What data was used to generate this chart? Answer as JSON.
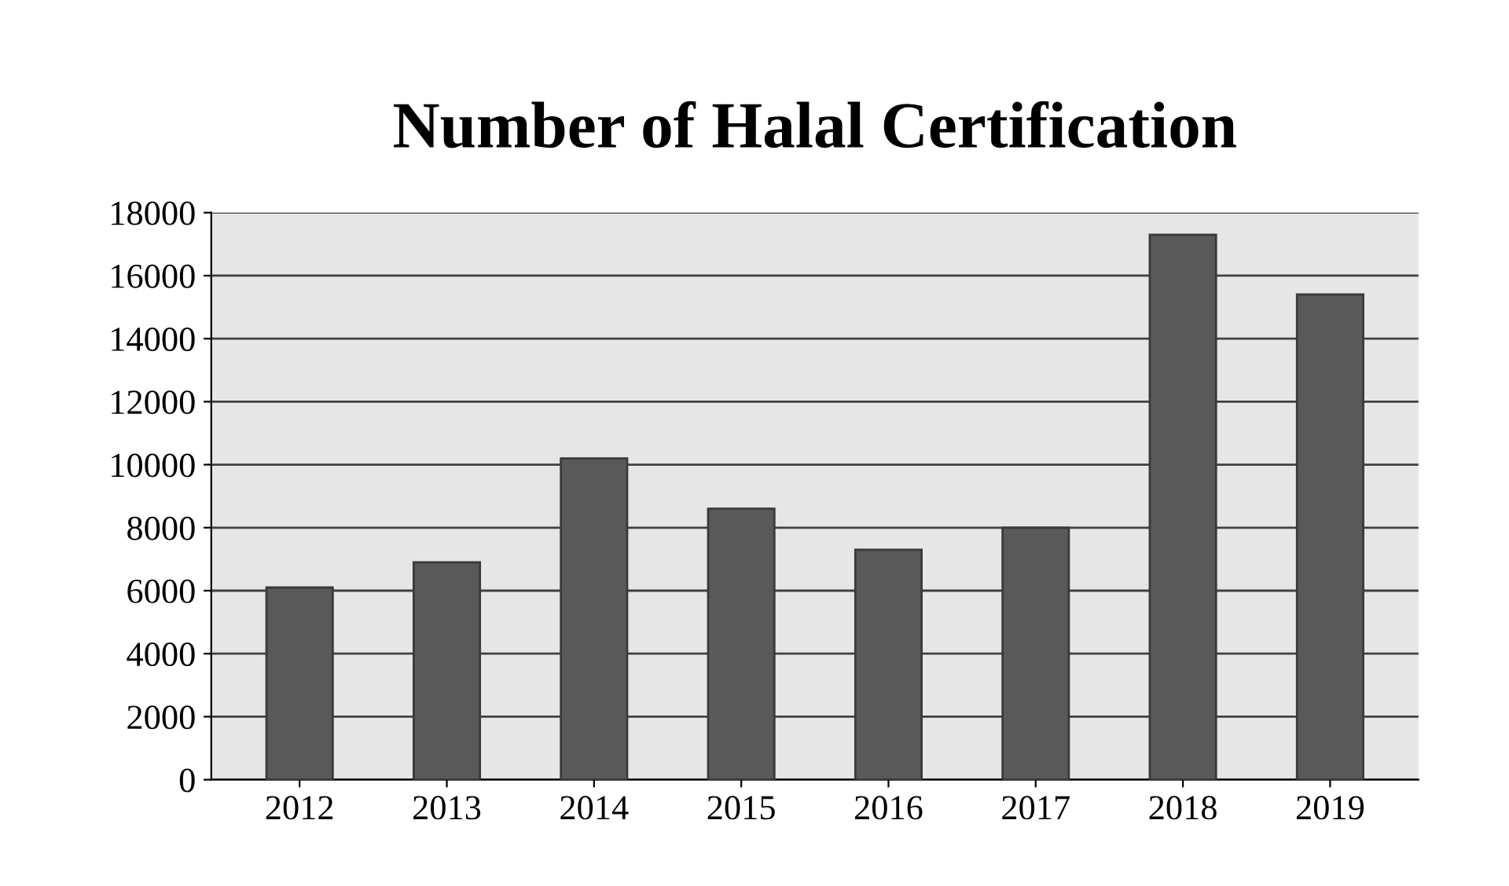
{
  "chart_data": {
    "type": "bar",
    "title": "Number of Halal Certification",
    "categories": [
      "2012",
      "2013",
      "2014",
      "2015",
      "2016",
      "2017",
      "2018",
      "2019"
    ],
    "values": [
      6100,
      6900,
      10200,
      8600,
      7300,
      8000,
      17300,
      15400
    ],
    "color": "#595959",
    "ylim": [
      0,
      18000
    ],
    "yticks": [
      0,
      2000,
      4000,
      6000,
      8000,
      10000,
      12000,
      14000,
      16000,
      18000
    ],
    "grid": "y"
  }
}
